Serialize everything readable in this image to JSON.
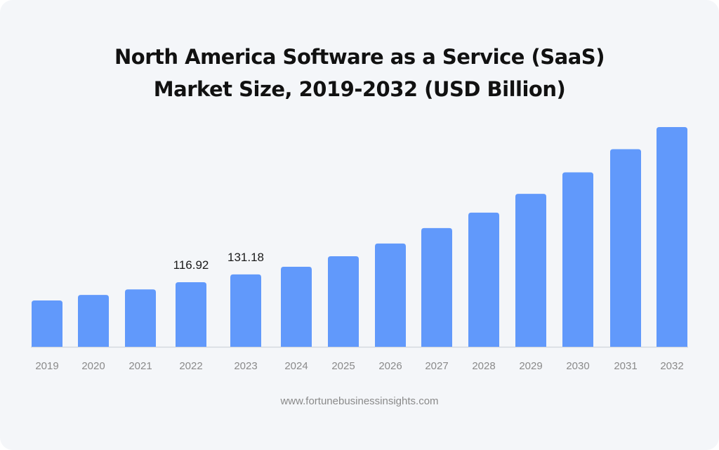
{
  "chart_data": {
    "type": "bar",
    "title": "North America Software as a Service (SaaS) Market Size, 2019-2032 (USD Billion)",
    "title_lines": [
      "North America Software as a Service (SaaS)",
      "Market Size, 2019-2032 (USD Billion)"
    ],
    "categories": [
      "2019",
      "2020",
      "2021",
      "2022",
      "2023",
      "2024",
      "2025",
      "2026",
      "2027",
      "2028",
      "2029",
      "2030",
      "2031",
      "2032"
    ],
    "values": [
      84,
      94,
      104,
      116.92,
      131.18,
      145,
      164,
      187,
      215,
      243,
      277,
      316,
      358,
      398
    ],
    "data_labels": {
      "3": "116.92",
      "4": "131.18"
    },
    "xlabel": "",
    "ylabel": "USD Billion",
    "ylim": [
      0,
      400
    ],
    "grid": false,
    "legend": "none",
    "bar_color": "#6199fb",
    "axis_color": "#d5d9e0"
  },
  "source": "www.fortunebusinessinsights.com"
}
